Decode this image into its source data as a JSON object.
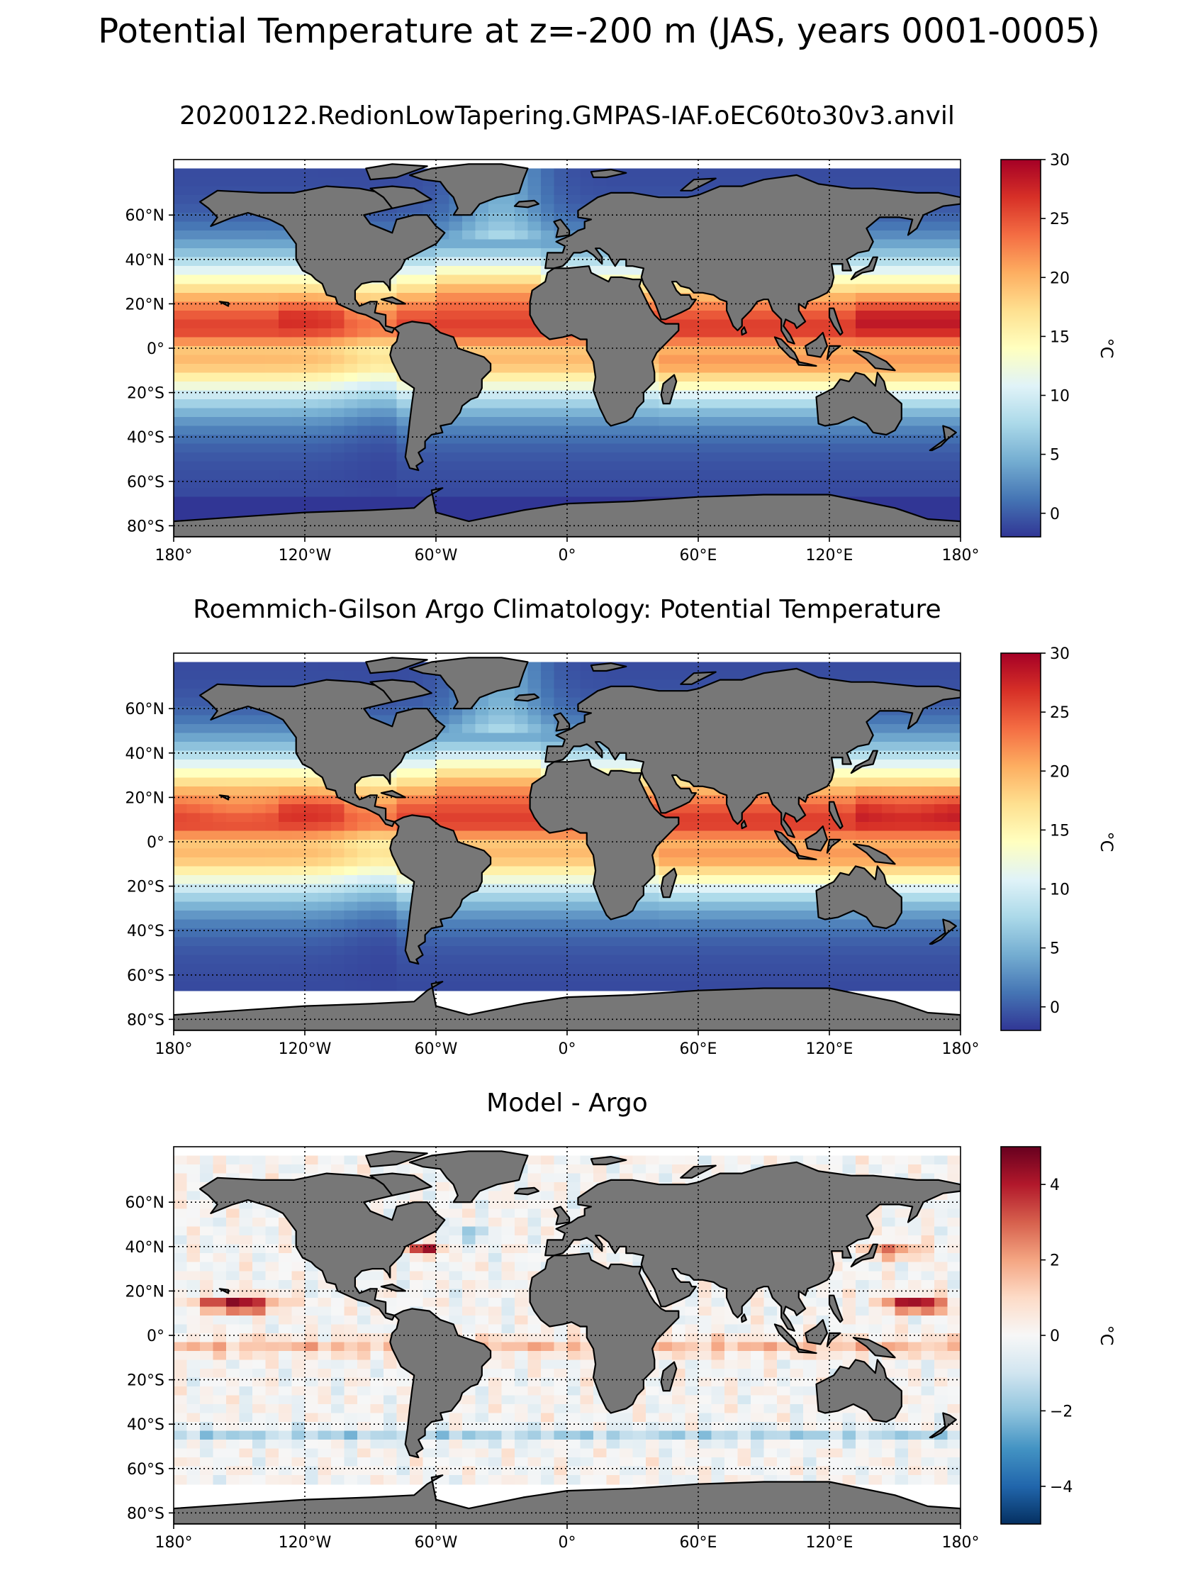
{
  "figure": {
    "suptitle": "Potential Temperature at z=-200 m (JAS, years 0001-0005)"
  },
  "chart_data": [
    {
      "type": "heatmap",
      "title": "20200122.RedionLowTapering.GMPAS-IAF.oEC60to30v3.anvil",
      "xlabel": "",
      "ylabel": "",
      "xlim": [
        -180,
        180
      ],
      "ylim": [
        -85,
        85
      ],
      "x_ticks": [
        -180,
        -120,
        -60,
        0,
        60,
        120,
        180
      ],
      "x_tick_labels": [
        "180°",
        "120°W",
        "60°W",
        "0°",
        "60°E",
        "120°E",
        "180°"
      ],
      "y_ticks": [
        -80,
        -60,
        -40,
        -20,
        0,
        20,
        40,
        60
      ],
      "y_tick_labels": [
        "80°S",
        "60°S",
        "40°S",
        "20°S",
        "0°",
        "20°N",
        "40°N",
        "60°N"
      ],
      "grid": true,
      "colormap": "RdYlBu_r",
      "clim": [
        -2,
        30
      ],
      "colorbar": {
        "label": "°C",
        "ticks": [
          0,
          5,
          10,
          15,
          20,
          25,
          30
        ],
        "tick_labels": [
          "0",
          "5",
          "10",
          "15",
          "20",
          "25",
          "30"
        ]
      },
      "field": "model",
      "southern_data_limit": -85
    },
    {
      "type": "heatmap",
      "title": "Roemmich-Gilson Argo Climatology: Potential Temperature",
      "xlabel": "",
      "ylabel": "",
      "xlim": [
        -180,
        180
      ],
      "ylim": [
        -85,
        85
      ],
      "x_ticks": [
        -180,
        -120,
        -60,
        0,
        60,
        120,
        180
      ],
      "x_tick_labels": [
        "180°",
        "120°W",
        "60°W",
        "0°",
        "60°E",
        "120°E",
        "180°"
      ],
      "y_ticks": [
        -80,
        -60,
        -40,
        -20,
        0,
        20,
        40,
        60
      ],
      "y_tick_labels": [
        "80°S",
        "60°S",
        "40°S",
        "20°S",
        "0°",
        "20°N",
        "40°N",
        "60°N"
      ],
      "grid": true,
      "colormap": "RdYlBu_r",
      "clim": [
        -2,
        30
      ],
      "colorbar": {
        "label": "°C",
        "ticks": [
          0,
          5,
          10,
          15,
          20,
          25,
          30
        ],
        "tick_labels": [
          "0",
          "5",
          "10",
          "15",
          "20",
          "25",
          "30"
        ]
      },
      "field": "obs",
      "southern_data_limit": -65
    },
    {
      "type": "heatmap",
      "title": "Model - Argo",
      "xlabel": "",
      "ylabel": "",
      "xlim": [
        -180,
        180
      ],
      "ylim": [
        -85,
        85
      ],
      "x_ticks": [
        -180,
        -120,
        -60,
        0,
        60,
        120,
        180
      ],
      "x_tick_labels": [
        "180°",
        "120°W",
        "60°W",
        "0°",
        "60°E",
        "120°E",
        "180°"
      ],
      "y_ticks": [
        -80,
        -60,
        -40,
        -20,
        0,
        20,
        40,
        60
      ],
      "y_tick_labels": [
        "80°S",
        "60°S",
        "40°S",
        "20°S",
        "0°",
        "20°N",
        "40°N",
        "60°N"
      ],
      "grid": true,
      "colormap": "RdBu_r",
      "clim": [
        -5,
        5
      ],
      "colorbar": {
        "label": "°C",
        "ticks": [
          -4,
          -2,
          0,
          2,
          4
        ],
        "tick_labels": [
          "−4",
          "−2",
          "0",
          "2",
          "4"
        ]
      },
      "field": "diff",
      "southern_data_limit": -65
    }
  ],
  "colors": {
    "land": "#777777",
    "no_data": "#ffffff",
    "coastline": "#000000"
  }
}
